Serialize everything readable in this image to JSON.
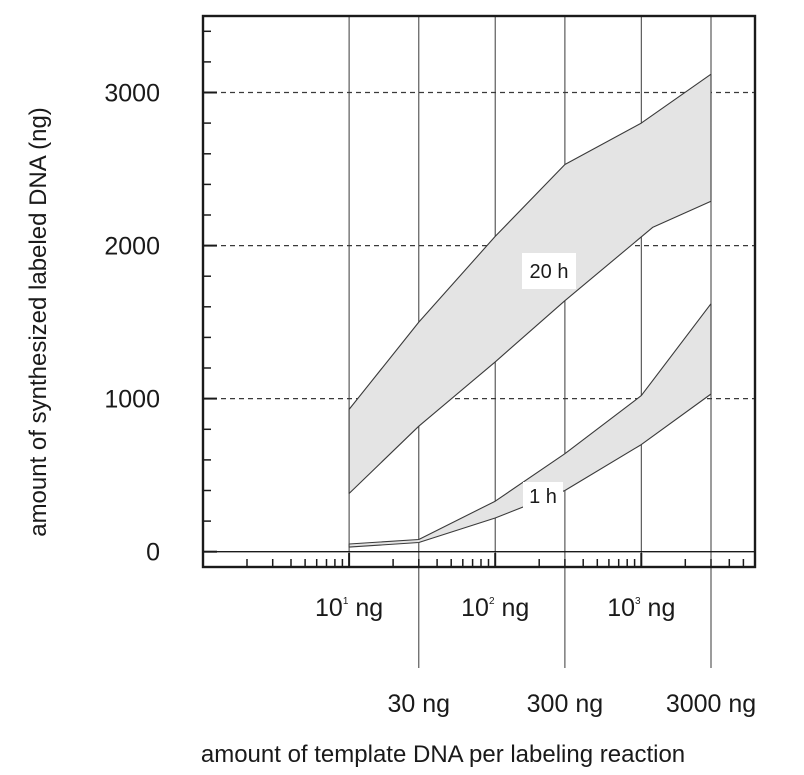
{
  "chart_data": {
    "type": "area",
    "xlabel": "amount of template DNA per labeling reaction",
    "ylabel": "amount of synthesized labeled DNA (ng)",
    "xscale": "log",
    "xlim": [
      1,
      6000
    ],
    "ylim": [
      -100,
      3500
    ],
    "grid": "dashed horizontal at 1000, 2000, 3000; vertical lines at 10, 30, 100, 300, 1000, 3000 ng",
    "yticks": [
      {
        "value": 0,
        "label": "0"
      },
      {
        "value": 1000,
        "label": "1000"
      },
      {
        "value": 2000,
        "label": "2000"
      },
      {
        "value": 3000,
        "label": "3000"
      }
    ],
    "xticks_primary": [
      {
        "value": 10,
        "base": "10",
        "exp": "1",
        "unit": "ng"
      },
      {
        "value": 100,
        "base": "10",
        "exp": "2",
        "unit": "ng"
      },
      {
        "value": 1000,
        "base": "10",
        "exp": "3",
        "unit": "ng"
      }
    ],
    "xticks_secondary": [
      {
        "value": 30,
        "label": "30 ng"
      },
      {
        "value": 300,
        "label": "300 ng"
      },
      {
        "value": 3000,
        "label": "3000 ng"
      }
    ],
    "series": [
      {
        "name": "20 h",
        "upper": [
          [
            10,
            930
          ],
          [
            30,
            1500
          ],
          [
            100,
            2060
          ],
          [
            300,
            2530
          ],
          [
            1000,
            2800
          ],
          [
            3000,
            3120
          ]
        ],
        "lower": [
          [
            10,
            380
          ],
          [
            30,
            820
          ],
          [
            100,
            1240
          ],
          [
            300,
            1640
          ],
          [
            1200,
            2120
          ],
          [
            3000,
            2290
          ]
        ]
      },
      {
        "name": "1 h",
        "upper": [
          [
            10,
            50
          ],
          [
            30,
            80
          ],
          [
            100,
            330
          ],
          [
            300,
            640
          ],
          [
            1000,
            1020
          ],
          [
            3000,
            1620
          ]
        ],
        "lower": [
          [
            10,
            30
          ],
          [
            30,
            60
          ],
          [
            100,
            220
          ],
          [
            300,
            400
          ],
          [
            1000,
            700
          ],
          [
            3000,
            1030
          ]
        ]
      }
    ]
  }
}
